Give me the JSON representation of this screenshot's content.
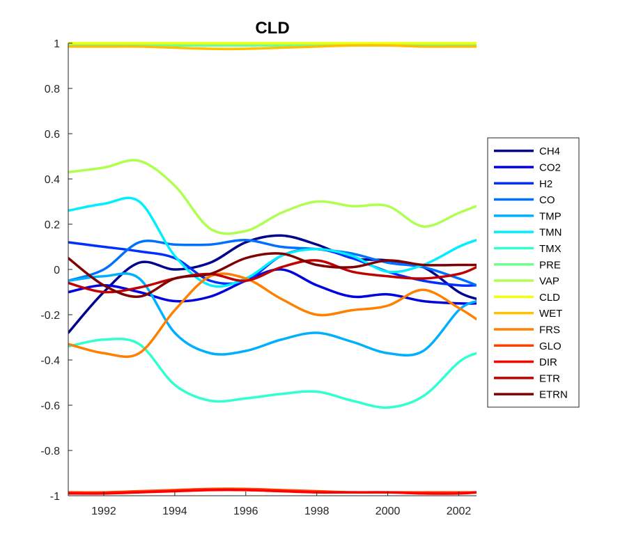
{
  "chart_data": {
    "type": "line",
    "title": "CLD",
    "xlabel": "",
    "ylabel": "",
    "xlim": [
      1991.0,
      2002.5
    ],
    "ylim": [
      -1,
      1
    ],
    "xticks": [
      1992,
      1994,
      1996,
      1998,
      2000,
      2002
    ],
    "xtick_labels": [
      "1992",
      "1994",
      "1996",
      "1998",
      "2000",
      "2002"
    ],
    "yticks": [
      -1,
      -0.8,
      -0.6,
      -0.4,
      -0.2,
      0,
      0.2,
      0.4,
      0.6,
      0.8,
      1
    ],
    "ytick_labels": [
      "-1",
      "-0.8",
      "-0.6",
      "-0.4",
      "-0.2",
      "0",
      "0.2",
      "0.4",
      "0.6",
      "0.8",
      "1"
    ],
    "grid": false,
    "legend_position": "outside-right",
    "x": [
      1991.0,
      1992.0,
      1993.0,
      1994.0,
      1995.0,
      1996.0,
      1997.0,
      1998.0,
      1999.0,
      2000.0,
      2001.0,
      2002.0,
      2002.5
    ],
    "series": [
      {
        "name": "CH4",
        "color": "#00008F",
        "values": [
          -0.28,
          -0.1,
          0.03,
          0.0,
          0.03,
          0.12,
          0.15,
          0.11,
          0.05,
          0.04,
          0.01,
          -0.1,
          -0.13
        ]
      },
      {
        "name": "CO2",
        "color": "#0000DF",
        "values": [
          -0.1,
          -0.07,
          -0.1,
          -0.14,
          -0.12,
          -0.05,
          0.0,
          -0.07,
          -0.12,
          -0.11,
          -0.14,
          -0.15,
          -0.15
        ]
      },
      {
        "name": "H2",
        "color": "#0030FF",
        "values": [
          0.12,
          0.1,
          0.08,
          0.05,
          -0.05,
          -0.05,
          0.06,
          0.09,
          0.05,
          -0.01,
          -0.05,
          -0.07,
          -0.07
        ]
      },
      {
        "name": "CO",
        "color": "#0070FF",
        "values": [
          -0.05,
          0.0,
          0.12,
          0.11,
          0.11,
          0.13,
          0.1,
          0.09,
          0.07,
          0.03,
          0.01,
          -0.04,
          -0.07
        ]
      },
      {
        "name": "TMP",
        "color": "#00B0FF",
        "values": [
          -0.05,
          -0.03,
          -0.04,
          -0.28,
          -0.37,
          -0.36,
          -0.31,
          -0.28,
          -0.32,
          -0.37,
          -0.36,
          -0.18,
          -0.14
        ]
      },
      {
        "name": "TMN",
        "color": "#00EFFF",
        "values": [
          0.26,
          0.29,
          0.3,
          0.06,
          -0.07,
          -0.04,
          0.06,
          0.09,
          0.06,
          -0.01,
          0.02,
          0.1,
          0.13
        ]
      },
      {
        "name": "TMX",
        "color": "#30FFCF",
        "values": [
          -0.34,
          -0.31,
          -0.33,
          -0.51,
          -0.58,
          -0.57,
          -0.55,
          -0.54,
          -0.58,
          -0.61,
          -0.56,
          -0.41,
          -0.37
        ]
      },
      {
        "name": "PRE",
        "color": "#70FF8F",
        "values": [
          0.99,
          0.99,
          0.99,
          0.99,
          0.99,
          0.99,
          0.99,
          0.99,
          0.99,
          0.99,
          0.99,
          0.99,
          0.99
        ]
      },
      {
        "name": "VAP",
        "color": "#AFFF50",
        "values": [
          0.43,
          0.45,
          0.48,
          0.37,
          0.18,
          0.17,
          0.25,
          0.3,
          0.28,
          0.28,
          0.19,
          0.25,
          0.28
        ]
      },
      {
        "name": "CLD",
        "color": "#EFFF10",
        "values": [
          1.0,
          1.0,
          1.0,
          1.0,
          1.0,
          1.0,
          1.0,
          1.0,
          1.0,
          1.0,
          1.0,
          1.0,
          1.0
        ]
      },
      {
        "name": "WET",
        "color": "#FFC000",
        "values": [
          0.985,
          0.985,
          0.985,
          0.98,
          0.975,
          0.975,
          0.98,
          0.985,
          0.99,
          0.99,
          0.985,
          0.985,
          0.985
        ]
      },
      {
        "name": "FRS",
        "color": "#FF8000",
        "values": [
          -0.33,
          -0.37,
          -0.37,
          -0.18,
          -0.03,
          -0.04,
          -0.13,
          -0.2,
          -0.18,
          -0.16,
          -0.09,
          -0.17,
          -0.22
        ]
      },
      {
        "name": "GLO",
        "color": "#FF4000",
        "values": [
          -0.985,
          -0.985,
          -0.98,
          -0.975,
          -0.97,
          -0.97,
          -0.975,
          -0.98,
          -0.985,
          -0.985,
          -0.985,
          -0.985,
          -0.985
        ]
      },
      {
        "name": "DIR",
        "color": "#FF0000",
        "values": [
          -0.99,
          -0.99,
          -0.985,
          -0.98,
          -0.975,
          -0.975,
          -0.98,
          -0.985,
          -0.985,
          -0.985,
          -0.99,
          -0.99,
          -0.985
        ]
      },
      {
        "name": "ETR",
        "color": "#BF0000",
        "values": [
          -0.06,
          -0.1,
          -0.08,
          -0.04,
          -0.02,
          -0.05,
          0.01,
          0.04,
          -0.01,
          -0.03,
          -0.04,
          -0.02,
          0.01
        ]
      },
      {
        "name": "ETRN",
        "color": "#800000",
        "values": [
          0.05,
          -0.07,
          -0.12,
          -0.04,
          -0.02,
          0.05,
          0.07,
          0.02,
          0.01,
          0.04,
          0.02,
          0.02,
          0.02
        ]
      }
    ]
  }
}
